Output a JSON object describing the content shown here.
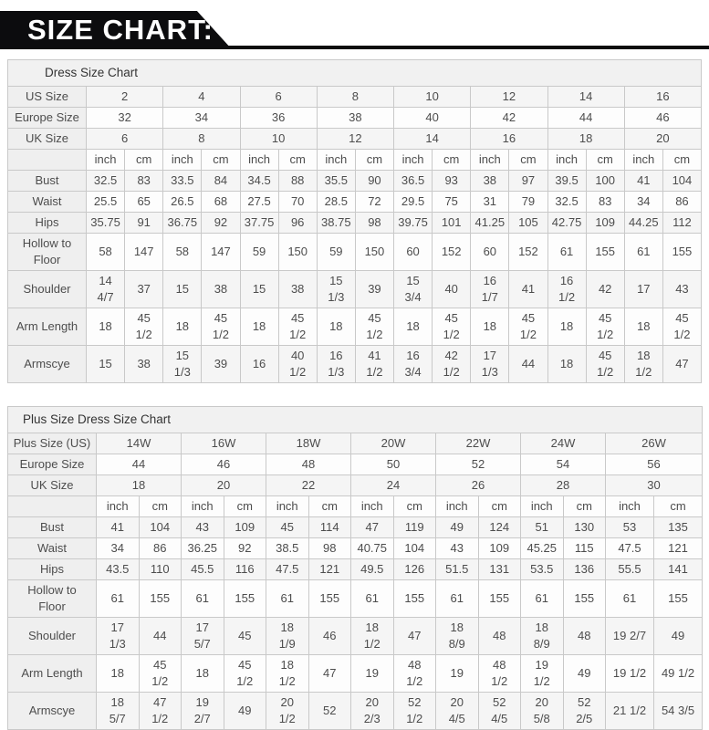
{
  "banner": {
    "title": "SIZE CHART:"
  },
  "colors": {
    "banner_bg": "#0c0c0e",
    "banner_text": "#ffffff",
    "table_border": "#c9c9c9",
    "title_bar_bg": "#f1f1f1",
    "label_bg": "#efefef",
    "stripe_bg": "#f5f5f5",
    "text": "#4d4d4d"
  },
  "tables": [
    {
      "title": "Dress Size Chart",
      "units": [
        "inch",
        "cm"
      ],
      "size_rows": [
        {
          "label": "US Size",
          "values": [
            "2",
            "4",
            "6",
            "8",
            "10",
            "12",
            "14",
            "16"
          ]
        },
        {
          "label": "Europe Size",
          "values": [
            "32",
            "34",
            "36",
            "38",
            "40",
            "42",
            "44",
            "46"
          ]
        },
        {
          "label": "UK Size",
          "values": [
            "6",
            "8",
            "10",
            "12",
            "14",
            "16",
            "18",
            "20"
          ]
        }
      ],
      "measure_rows": [
        {
          "label": "Bust",
          "values": [
            "32.5",
            "83",
            "33.5",
            "84",
            "34.5",
            "88",
            "35.5",
            "90",
            "36.5",
            "93",
            "38",
            "97",
            "39.5",
            "100",
            "41",
            "104"
          ]
        },
        {
          "label": "Waist",
          "values": [
            "25.5",
            "65",
            "26.5",
            "68",
            "27.5",
            "70",
            "28.5",
            "72",
            "29.5",
            "75",
            "31",
            "79",
            "32.5",
            "83",
            "34",
            "86"
          ]
        },
        {
          "label": "Hips",
          "values": [
            "35.75",
            "91",
            "36.75",
            "92",
            "37.75",
            "96",
            "38.75",
            "98",
            "39.75",
            "101",
            "41.25",
            "105",
            "42.75",
            "109",
            "44.25",
            "112"
          ]
        },
        {
          "label": "Hollow to\nFloor",
          "values": [
            "58",
            "147",
            "58",
            "147",
            "59",
            "150",
            "59",
            "150",
            "60",
            "152",
            "60",
            "152",
            "61",
            "155",
            "61",
            "155"
          ]
        },
        {
          "label": "Shoulder",
          "values": [
            "14\n4/7",
            "37",
            "15",
            "38",
            "15",
            "38",
            "15\n1/3",
            "39",
            "15\n3/4",
            "40",
            "16\n1/7",
            "41",
            "16\n1/2",
            "42",
            "17",
            "43"
          ]
        },
        {
          "label": "Arm Length",
          "values": [
            "18",
            "45\n1/2",
            "18",
            "45\n1/2",
            "18",
            "45\n1/2",
            "18",
            "45\n1/2",
            "18",
            "45\n1/2",
            "18",
            "45\n1/2",
            "18",
            "45\n1/2",
            "18",
            "45\n1/2"
          ]
        },
        {
          "label": "Armscye",
          "values": [
            "15",
            "38",
            "15\n1/3",
            "39",
            "16",
            "40\n1/2",
            "16\n1/3",
            "41\n1/2",
            "16\n3/4",
            "42\n1/2",
            "17\n1/3",
            "44",
            "18",
            "45\n1/2",
            "18\n1/2",
            "47"
          ]
        }
      ]
    },
    {
      "title": "Plus Size Dress Size Chart",
      "units": [
        "inch",
        "cm"
      ],
      "size_rows": [
        {
          "label": "Plus Size (US)",
          "values": [
            "14W",
            "16W",
            "18W",
            "20W",
            "22W",
            "24W",
            "26W"
          ]
        },
        {
          "label": "Europe Size",
          "values": [
            "44",
            "46",
            "48",
            "50",
            "52",
            "54",
            "56"
          ]
        },
        {
          "label": "UK Size",
          "values": [
            "18",
            "20",
            "22",
            "24",
            "26",
            "28",
            "30"
          ]
        }
      ],
      "measure_rows": [
        {
          "label": "Bust",
          "values": [
            "41",
            "104",
            "43",
            "109",
            "45",
            "114",
            "47",
            "119",
            "49",
            "124",
            "51",
            "130",
            "53",
            "135"
          ]
        },
        {
          "label": "Waist",
          "values": [
            "34",
            "86",
            "36.25",
            "92",
            "38.5",
            "98",
            "40.75",
            "104",
            "43",
            "109",
            "45.25",
            "115",
            "47.5",
            "121"
          ]
        },
        {
          "label": "Hips",
          "values": [
            "43.5",
            "110",
            "45.5",
            "116",
            "47.5",
            "121",
            "49.5",
            "126",
            "51.5",
            "131",
            "53.5",
            "136",
            "55.5",
            "141"
          ]
        },
        {
          "label": "Hollow to\nFloor",
          "values": [
            "61",
            "155",
            "61",
            "155",
            "61",
            "155",
            "61",
            "155",
            "61",
            "155",
            "61",
            "155",
            "61",
            "155"
          ]
        },
        {
          "label": "Shoulder",
          "values": [
            "17\n1/3",
            "44",
            "17\n5/7",
            "45",
            "18\n1/9",
            "46",
            "18\n1/2",
            "47",
            "18\n8/9",
            "48",
            "18\n8/9",
            "48",
            "19 2/7",
            "49"
          ]
        },
        {
          "label": "Arm Length",
          "values": [
            "18",
            "45\n1/2",
            "18",
            "45\n1/2",
            "18\n1/2",
            "47",
            "19",
            "48\n1/2",
            "19",
            "48\n1/2",
            "19\n1/2",
            "49",
            "19 1/2",
            "49 1/2"
          ]
        },
        {
          "label": "Armscye",
          "values": [
            "18\n5/7",
            "47\n1/2",
            "19\n2/7",
            "49",
            "20\n1/2",
            "52",
            "20\n2/3",
            "52\n1/2",
            "20\n4/5",
            "52\n4/5",
            "20\n5/8",
            "52\n2/5",
            "21 1/2",
            "54 3/5"
          ]
        }
      ]
    }
  ]
}
